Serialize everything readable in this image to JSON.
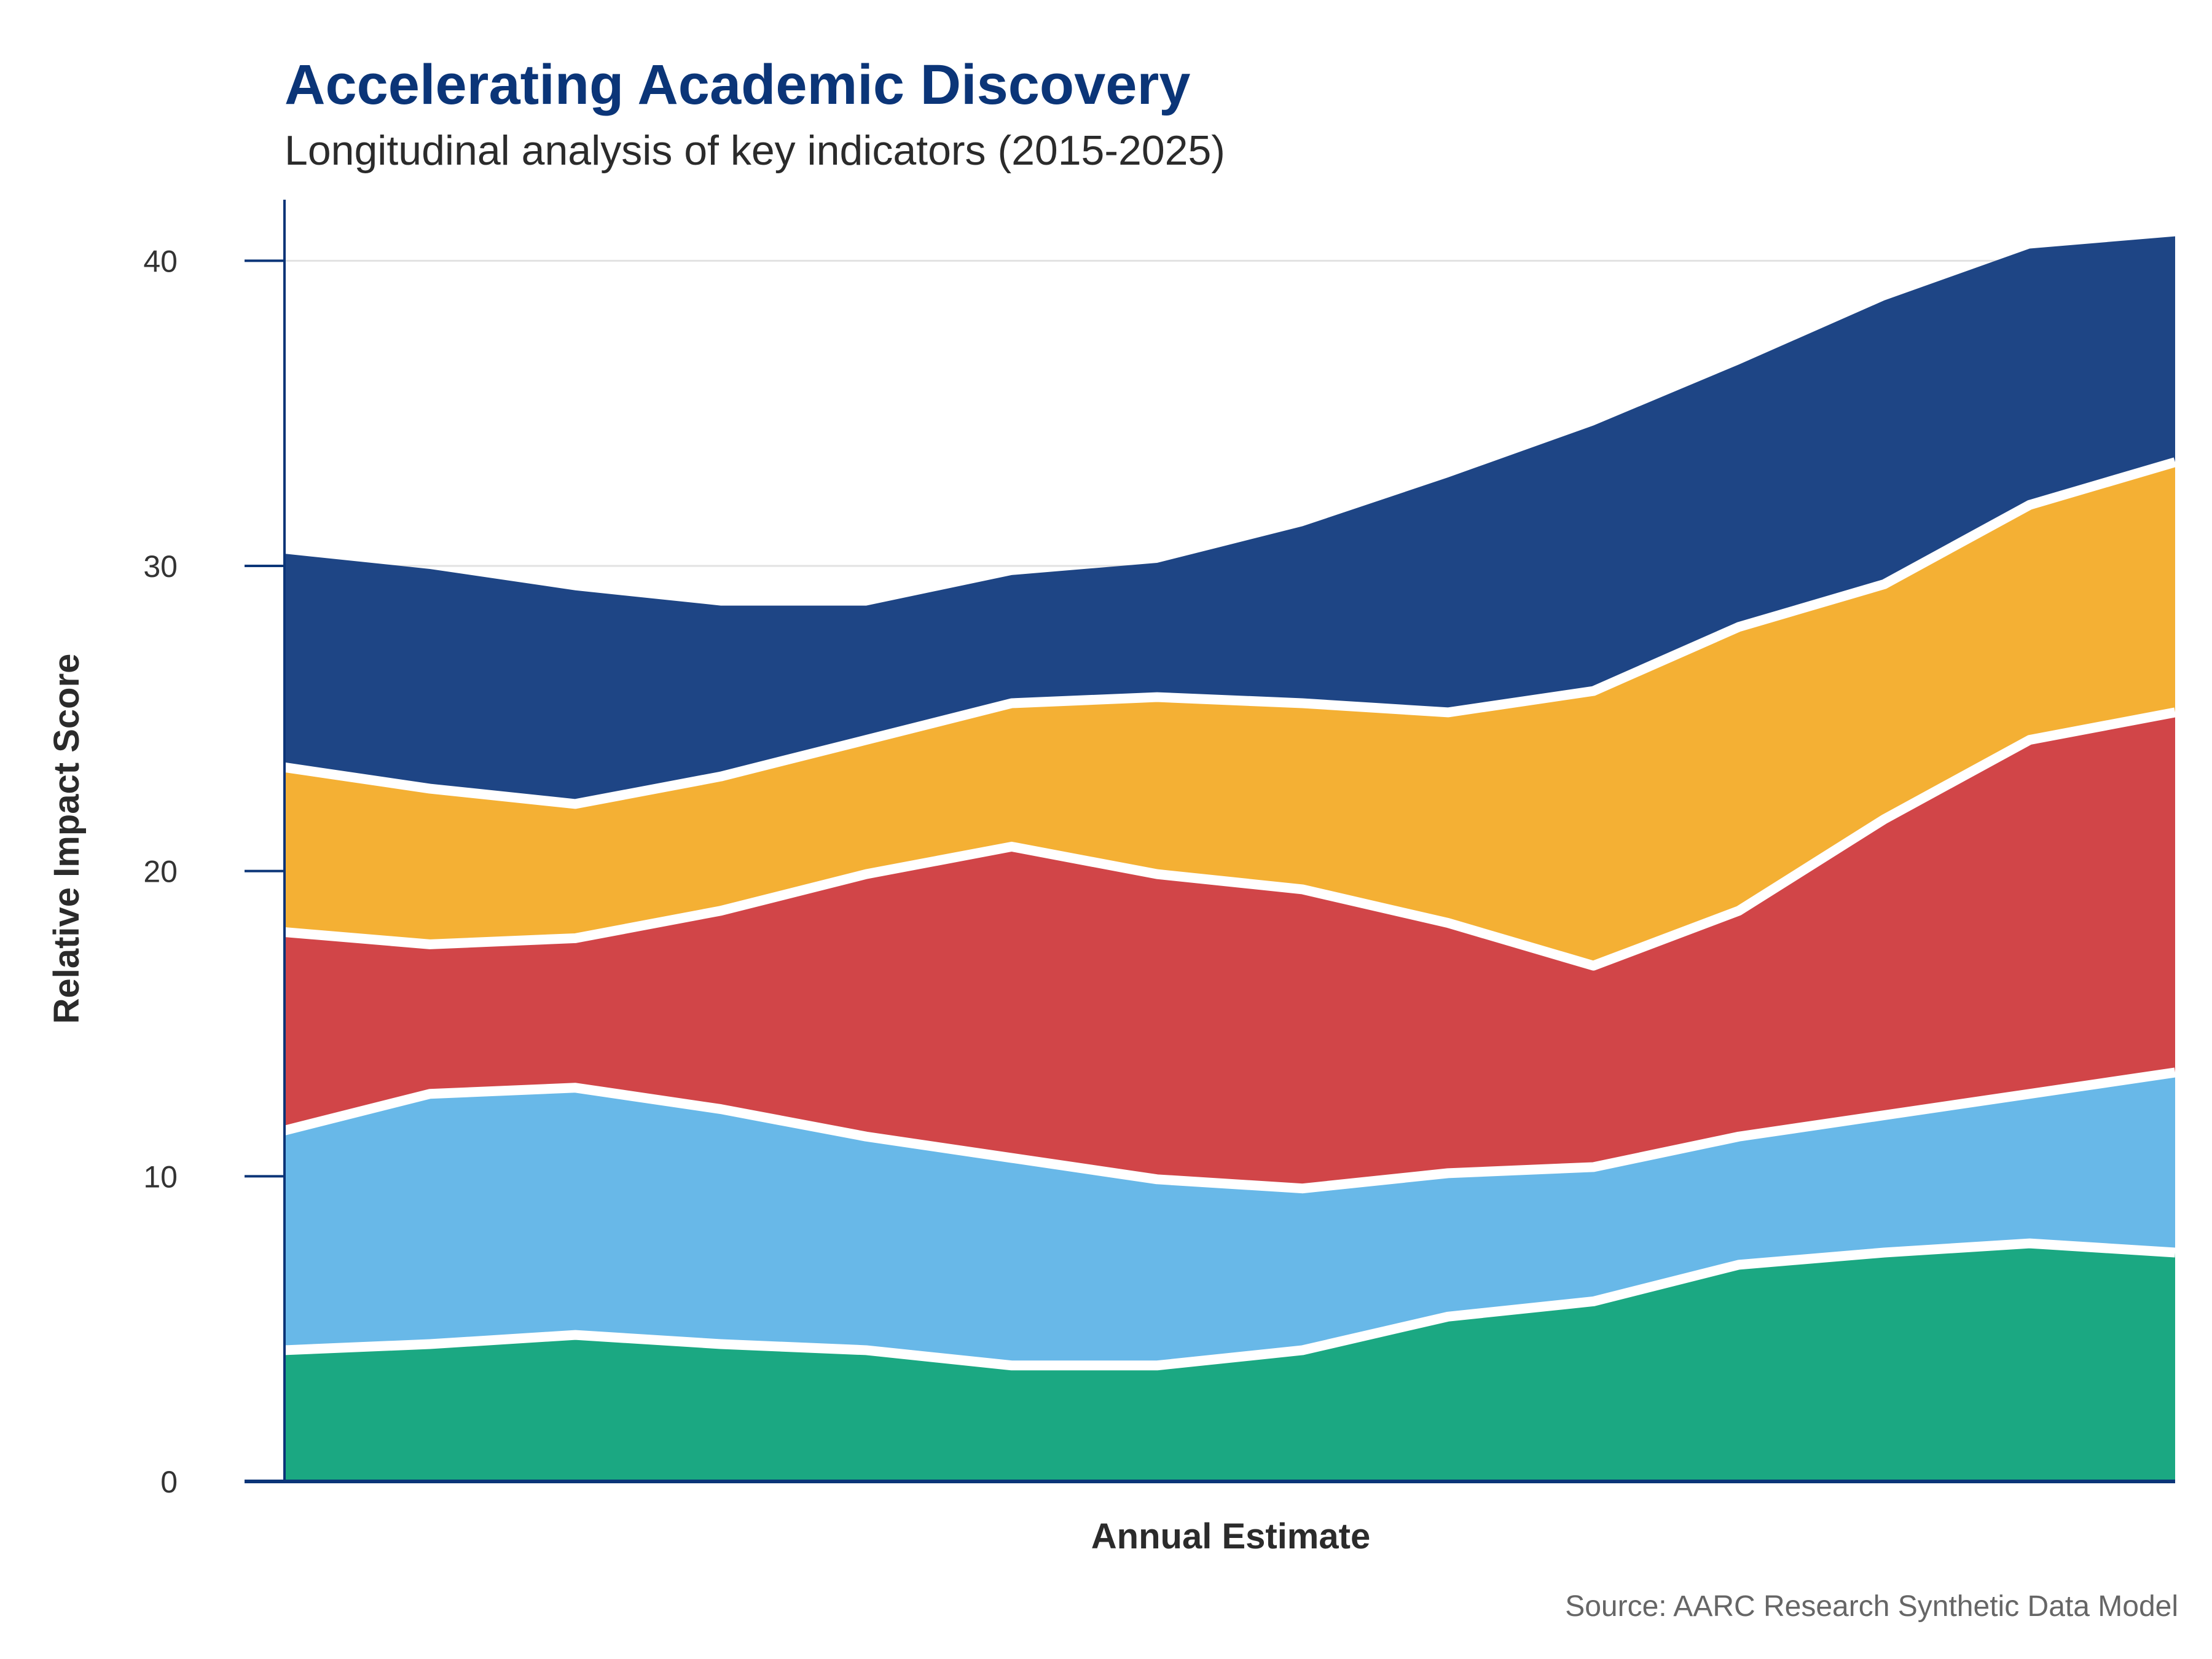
{
  "chart_data": {
    "type": "area",
    "stacked": true,
    "title": "Accelerating Academic Discovery",
    "subtitle": "Longitudinal analysis of key indicators (2015-2025)",
    "xlabel": "Annual Estimate",
    "ylabel": "Relative Impact Score",
    "source": "Source: AARC Research Synthetic Data Model",
    "ylim": [
      0,
      42
    ],
    "yticks": [
      "0",
      "10",
      "20",
      "30",
      "40"
    ],
    "ytick_values": [
      0,
      10,
      20,
      30,
      40
    ],
    "grid": "horizontal",
    "legend": "none",
    "axis_color": "#0b3578",
    "series": [
      {
        "color": "#1ba882",
        "values": [
          4.3,
          4.5,
          4.8,
          4.5,
          4.3,
          3.8,
          3.8,
          4.3,
          5.4,
          5.9,
          7.1,
          7.5,
          7.8,
          7.5
        ]
      },
      {
        "color": "#68b8e8",
        "values": [
          7.2,
          8.2,
          8.1,
          7.7,
          7.0,
          6.8,
          6.1,
          5.3,
          4.7,
          4.4,
          4.2,
          4.5,
          4.9,
          5.9
        ]
      },
      {
        "color": "#d14548",
        "values": [
          6.5,
          4.9,
          4.9,
          6.5,
          8.6,
          10.2,
          10.0,
          9.8,
          8.2,
          6.6,
          7.4,
          9.7,
          11.6,
          11.8
        ]
      },
      {
        "color": "#f4b034",
        "values": [
          5.4,
          5.1,
          4.4,
          4.4,
          4.4,
          4.7,
          5.8,
          6.1,
          6.9,
          9.0,
          9.3,
          7.7,
          7.7,
          8.2
        ]
      },
      {
        "color": "#1e4585",
        "values": [
          7.0,
          7.2,
          7.0,
          5.6,
          4.4,
          4.2,
          4.4,
          5.8,
          7.7,
          8.7,
          8.6,
          9.3,
          8.4,
          7.4
        ]
      }
    ]
  }
}
